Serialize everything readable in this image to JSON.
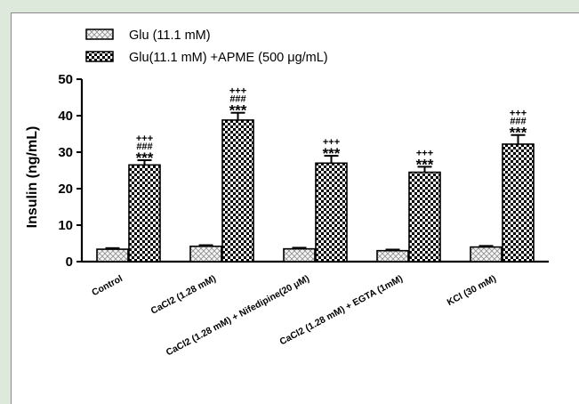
{
  "legend": [
    {
      "label": "Glu (11.1 mM)",
      "pattern": "light"
    },
    {
      "label": "Glu(11.1 mM) +APME (500 μg/mL)",
      "pattern": "checker"
    }
  ],
  "chart_data": {
    "type": "bar",
    "ylabel": "Insulin (ng/mL)",
    "xlabel": "",
    "ylim": [
      0,
      50
    ],
    "yticks": [
      "0",
      "10",
      "20",
      "30",
      "40",
      "50"
    ],
    "grid": false,
    "legend_position": "top-left",
    "categories": [
      "Control",
      "CaCl2 (1.28 mM)",
      "CaCl2 (1.28 mM) + Nifedipine(20 μM)",
      "CaCl2 (1.28 mM) + EGTA (1mM)",
      "KCl (30 mM)"
    ],
    "series": [
      {
        "name": "Glu (11.1 mM)",
        "values": [
          3.4,
          4.2,
          3.5,
          3.0,
          4.0
        ],
        "errors": [
          0.3,
          0.3,
          0.3,
          0.3,
          0.3
        ]
      },
      {
        "name": "Glu(11.1 mM) +APME (500 μg/mL)",
        "values": [
          26.5,
          38.8,
          27.0,
          24.5,
          32.2
        ],
        "errors": [
          1.3,
          2.0,
          2.0,
          1.5,
          2.5
        ]
      }
    ],
    "annotations": [
      {
        "series": 1,
        "category": 0,
        "lines": [
          "+++",
          "###",
          "***"
        ]
      },
      {
        "series": 1,
        "category": 1,
        "lines": [
          "+++",
          "###",
          "***"
        ]
      },
      {
        "series": 1,
        "category": 2,
        "lines": [
          "+++",
          "***"
        ]
      },
      {
        "series": 1,
        "category": 3,
        "lines": [
          "+++",
          "***"
        ]
      },
      {
        "series": 1,
        "category": 4,
        "lines": [
          "+++",
          "###",
          "***"
        ]
      }
    ]
  }
}
